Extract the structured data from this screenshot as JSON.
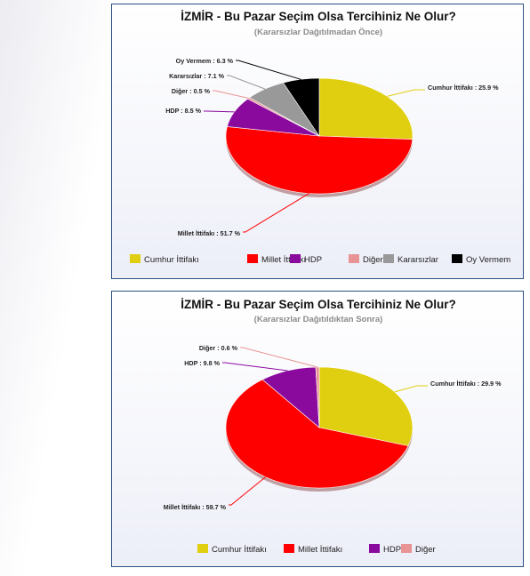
{
  "colors": {
    "Cumhur İttifakı": "#e0cf10",
    "Millet İttifakı": "#ff0000",
    "HDP": "#8b0a9e",
    "Diğer": "#e89494",
    "Kararsızlar": "#999999",
    "Oy Vermem": "#000000"
  },
  "chart_data": [
    {
      "type": "pie",
      "title": "İZMİR - Bu Pazar Seçim Olsa Tercihiniz Ne Olur?",
      "subtitle": "(Kararsızlar Dağıtılmadan Önce)",
      "unit": "%",
      "legend_position": "bottom",
      "slices": [
        {
          "name": "Cumhur İttifakı",
          "value": 25.9,
          "label": "Cumhur İttifakı : 25.9 %"
        },
        {
          "name": "Millet İttifakı",
          "value": 51.7,
          "label": "Millet İttifakı : 51.7 %"
        },
        {
          "name": "HDP",
          "value": 8.5,
          "label": "HDP : 8.5 %"
        },
        {
          "name": "Diğer",
          "value": 0.5,
          "label": "Diğer : 0.5 %"
        },
        {
          "name": "Kararsızlar",
          "value": 7.1,
          "label": "Kararsızlar : 7.1 %"
        },
        {
          "name": "Oy Vermem",
          "value": 6.3,
          "label": "Oy Vermem : 6.3 %"
        }
      ],
      "legend": [
        "Cumhur İttifakı",
        "Millet İttifakı",
        "HDP",
        "Diğer",
        "Kararsızlar",
        "Oy Vermem"
      ]
    },
    {
      "type": "pie",
      "title": "İZMİR - Bu Pazar Seçim Olsa Tercihiniz Ne Olur?",
      "subtitle": "(Kararsızlar Dağıtıldıktan Sonra)",
      "unit": "%",
      "legend_position": "bottom",
      "slices": [
        {
          "name": "Cumhur İttifakı",
          "value": 29.9,
          "label": "Cumhur İttifakı : 29.9 %"
        },
        {
          "name": "Millet İttifakı",
          "value": 59.7,
          "label": "Millet İttifakı : 59.7 %"
        },
        {
          "name": "HDP",
          "value": 9.8,
          "label": "HDP : 9.8 %"
        },
        {
          "name": "Diğer",
          "value": 0.6,
          "label": "Diğer : 0.6 %"
        }
      ],
      "legend": [
        "Cumhur İttifakı",
        "Millet İttifakı",
        "HDP",
        "Diğer"
      ]
    }
  ]
}
